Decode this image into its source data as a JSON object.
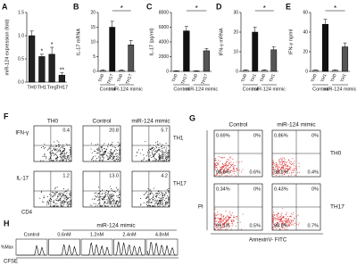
{
  "chart_data": [
    {
      "type": "bar",
      "panel_label": "A",
      "ylabel": "miR-124 expression (fold)",
      "categories": [
        "TH0",
        "TH1",
        "Treg",
        "TH17"
      ],
      "values": [
        1.0,
        0.55,
        0.6,
        0.15
      ],
      "errors": [
        0.1,
        0.05,
        0.15,
        0.05
      ],
      "colors": [
        "#222",
        "#222",
        "#222",
        "#222"
      ],
      "ylim": [
        0,
        1.5
      ],
      "yticks": [
        {
          "value": 0,
          "label": "0.0"
        },
        {
          "value": 0.5,
          "label": "0.5"
        },
        {
          "value": 1,
          "label": "1.0"
        },
        {
          "value": 1.5,
          "label": "1.5"
        }
      ],
      "annotations": [
        {
          "text": "*",
          "category": 1
        },
        {
          "text": "*",
          "category": 2
        },
        {
          "text": "**",
          "category": 3
        }
      ]
    },
    {
      "type": "bar",
      "panel_label": "B",
      "ylabel": "IL-17 mRNA",
      "categories": [
        "TH0",
        "TH17",
        "TH0",
        "TH17"
      ],
      "groups": [
        "Control",
        "miR-124 mimic"
      ],
      "values": [
        0.3,
        15,
        0.3,
        9
      ],
      "errors": [
        0.2,
        2,
        0.2,
        1.5
      ],
      "colors": [
        "#fff",
        "#111",
        "#fff",
        "#555"
      ],
      "ylim": [
        0,
        20
      ],
      "yticks": [
        0,
        5,
        10,
        15,
        20
      ],
      "annotations": [
        {
          "text": "*",
          "between": [
            1,
            3
          ]
        }
      ]
    },
    {
      "type": "bar",
      "panel_label": "C",
      "ylabel": "IL-17 (pg/ml)",
      "categories": [
        "TH0",
        "TH17",
        "TH0",
        "TH17"
      ],
      "groups": [
        "Control",
        "miR-124 mimic"
      ],
      "values": [
        50,
        5500,
        50,
        2800
      ],
      "errors": [
        30,
        600,
        30,
        300
      ],
      "colors": [
        "#fff",
        "#111",
        "#fff",
        "#555"
      ],
      "ylim": [
        0,
        8000
      ],
      "yticks": [
        0,
        2000,
        4000,
        6000,
        8000
      ],
      "annotations": [
        {
          "text": "*",
          "between": [
            1,
            3
          ]
        }
      ]
    },
    {
      "type": "bar",
      "panel_label": "D",
      "ylabel": "IFN-γ mRNA",
      "categories": [
        "TH0",
        "TH1",
        "TH0",
        "TH1"
      ],
      "groups": [
        "Control",
        "miR-124 mimic"
      ],
      "values": [
        0.5,
        20,
        0.5,
        11
      ],
      "errors": [
        0.3,
        2.5,
        0.3,
        1.5
      ],
      "colors": [
        "#fff",
        "#111",
        "#fff",
        "#555"
      ],
      "ylim": [
        0,
        30
      ],
      "yticks": [
        0,
        10,
        20,
        30
      ],
      "annotations": [
        {
          "text": "*",
          "between": [
            1,
            3
          ]
        }
      ]
    },
    {
      "type": "bar",
      "panel_label": "E",
      "ylabel": "IFN-γ ng/ml",
      "categories": [
        "TH0",
        "TH1",
        "TH0",
        "TH1"
      ],
      "groups": [
        "Control",
        "miR-124 mimic"
      ],
      "values": [
        1,
        48,
        1,
        25
      ],
      "errors": [
        0.5,
        5,
        0.5,
        4
      ],
      "colors": [
        "#fff",
        "#111",
        "#fff",
        "#555"
      ],
      "ylim": [
        0,
        60
      ],
      "yticks": [
        0,
        20,
        40,
        60
      ],
      "annotations": [
        {
          "text": "*",
          "between": [
            1,
            3
          ]
        }
      ]
    }
  ],
  "flow_f": {
    "panel_label": "F",
    "columns": [
      "TH0",
      "Control",
      "miR-124 mimic"
    ],
    "rows": [
      "IFN-γ",
      "IL-17"
    ],
    "row_types": [
      "TH1",
      "TH17"
    ],
    "x_axis": "CD4",
    "plots": [
      [
        [
          "0.4",
          "99.6"
        ],
        [
          "20.8",
          "79.2"
        ],
        [
          "5.7",
          "94.3"
        ]
      ],
      [
        [
          "1.2",
          "97.6"
        ],
        [
          "13.0",
          "87.0"
        ],
        [
          "4.2",
          "95.6"
        ]
      ]
    ]
  },
  "flow_g": {
    "panel_label": "G",
    "columns": [
      "Control",
      "miR-124 mimic"
    ],
    "rows": [
      "TH0",
      "TH17"
    ],
    "y_axis": "PI",
    "x_axis": "AnnexinV- FITC",
    "plots": [
      [
        [
          "0.69%",
          "0%",
          "98.6%",
          "0.6%"
        ],
        [
          "0.86%",
          "0%",
          "98.8%",
          "0.4%"
        ]
      ],
      [
        [
          "0.34%",
          "0%",
          "99.1%",
          "0.5%"
        ],
        [
          "0.43%",
          "0%",
          "98.8%",
          "0.7%"
        ]
      ]
    ]
  },
  "hist_h": {
    "panel_label": "H",
    "title": "miR-124 mimic",
    "conditions": [
      "Control",
      "0.6nM",
      "1.2nM",
      "2.4nM",
      "4.8nM"
    ],
    "y_axis": "%Max",
    "x_axis": "CFSE"
  }
}
